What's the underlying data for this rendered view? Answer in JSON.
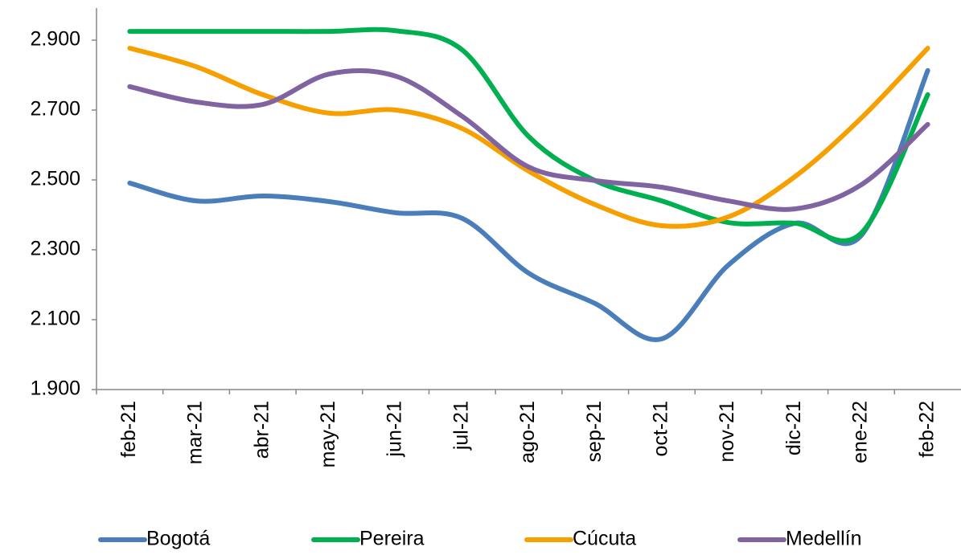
{
  "chart_data": {
    "type": "line",
    "categories": [
      "feb-21",
      "mar-21",
      "abr-21",
      "may-21",
      "jun-21",
      "jul-21",
      "ago-21",
      "sep-21",
      "oct-21",
      "nov-21",
      "dic-21",
      "ene-22",
      "feb-22"
    ],
    "series": [
      {
        "name": "Bogotá",
        "color": "#4a7ebb",
        "values": [
          2491,
          2440,
          2454,
          2438,
          2406,
          2390,
          2233,
          2146,
          2045,
          2256,
          2376,
          2341,
          2813
        ]
      },
      {
        "name": "Pereira",
        "color": "#00b050",
        "values": [
          2925,
          2925,
          2925,
          2925,
          2927,
          2872,
          2624,
          2498,
          2440,
          2378,
          2376,
          2348,
          2744
        ]
      },
      {
        "name": "Cúcuta",
        "color": "#f5a000",
        "values": [
          2877,
          2824,
          2744,
          2691,
          2700,
          2647,
          2525,
          2429,
          2369,
          2394,
          2509,
          2677,
          2877
        ]
      },
      {
        "name": "Medellín",
        "color": "#8064a2",
        "values": [
          2767,
          2723,
          2716,
          2803,
          2797,
          2682,
          2537,
          2498,
          2479,
          2440,
          2417,
          2486,
          2659
        ]
      }
    ],
    "ylim": [
      1900,
      3000
    ],
    "yticks": [
      {
        "value": 1900,
        "label": "1.900"
      },
      {
        "value": 2100,
        "label": "2.100"
      },
      {
        "value": 2300,
        "label": "2.300"
      },
      {
        "value": 2500,
        "label": "2.500"
      },
      {
        "value": 2700,
        "label": "2.700"
      },
      {
        "value": 2900,
        "label": "2.900"
      }
    ],
    "legend": "bottom",
    "grid": false
  }
}
